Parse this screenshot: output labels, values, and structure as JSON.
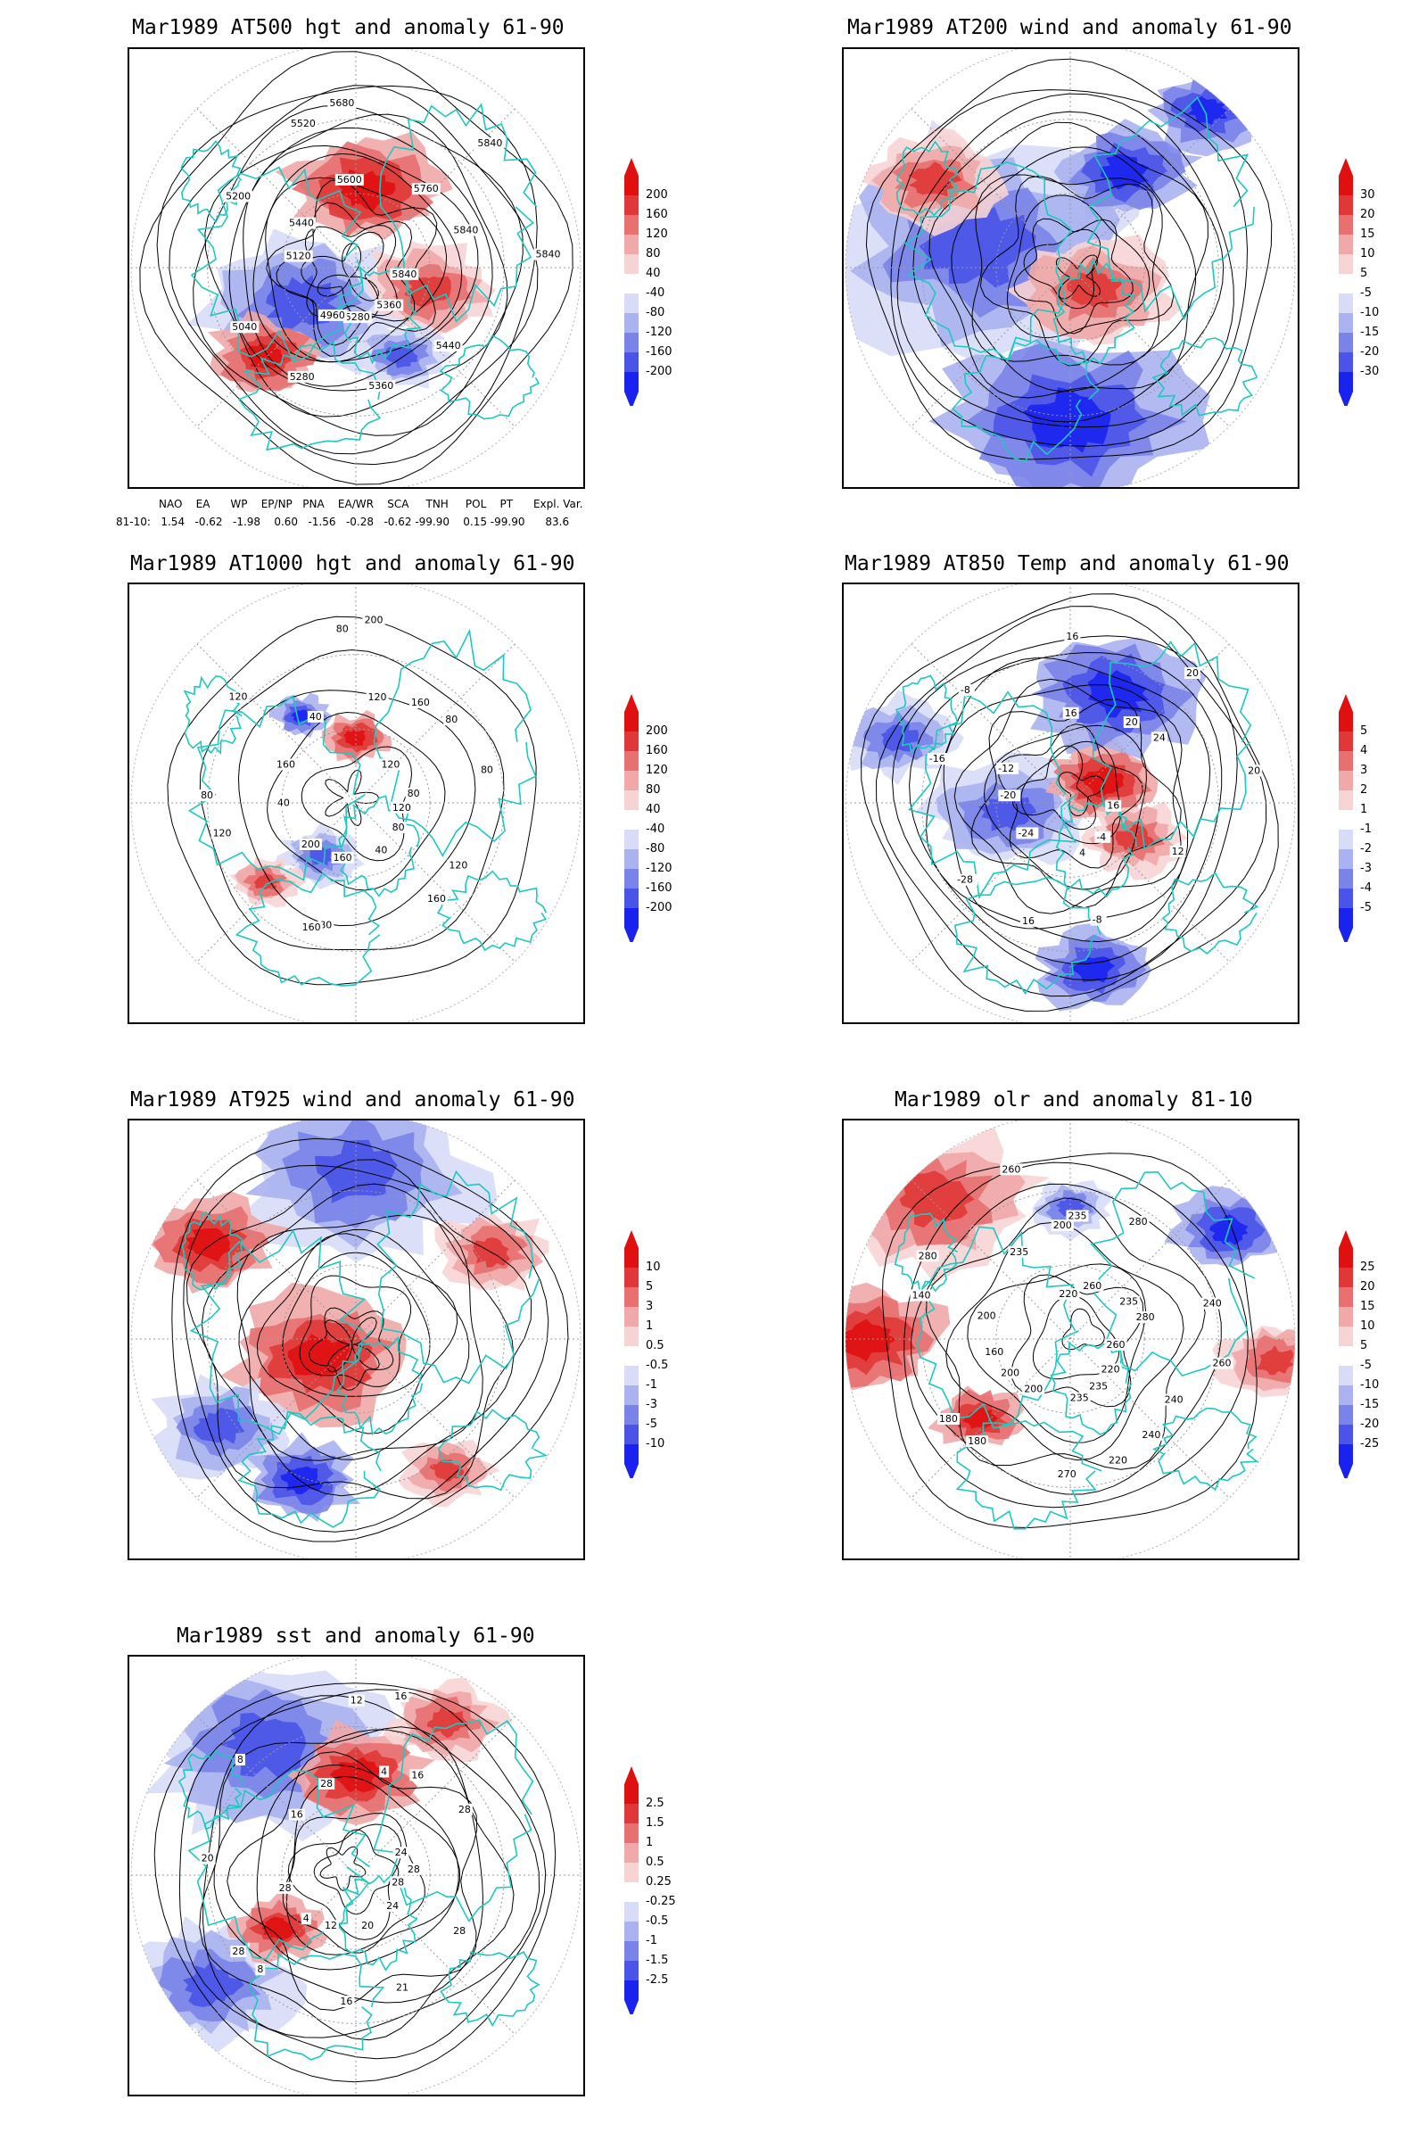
{
  "panels": [
    {
      "id": "p1",
      "title": "Mar1989 AT500 hgt and anomaly 61-90",
      "colorbar": [
        "200",
        "160",
        "120",
        "80",
        "40",
        "-40",
        "-80",
        "-120",
        "-160",
        "-200"
      ],
      "contour_labels": [
        "5840",
        "5440",
        "5360",
        "5360",
        "5280",
        "5280",
        "4960",
        "5040",
        "5120",
        "5200",
        "5440",
        "5520",
        "5600",
        "5680",
        "5760",
        "5840",
        "5840",
        "5840"
      ],
      "anomaly_pattern": [
        [
          "neg",
          0.38,
          0.58,
          0.18
        ],
        [
          "pos",
          0.52,
          0.32,
          0.14
        ],
        [
          "pos",
          0.66,
          0.55,
          0.12
        ],
        [
          "pos",
          0.3,
          0.7,
          0.1
        ],
        [
          "neg",
          0.6,
          0.7,
          0.08
        ]
      ],
      "contour_count": 14
    },
    {
      "id": "p2",
      "title": "Mar1989 AT200 wind and anomaly 61-90",
      "colorbar": [
        "30",
        "20",
        "15",
        "10",
        "5",
        "-5",
        "-10",
        "-15",
        "-20",
        "-30"
      ],
      "contour_labels": [],
      "anomaly_pattern": [
        [
          "neg",
          0.3,
          0.45,
          0.28
        ],
        [
          "neg",
          0.5,
          0.85,
          0.22
        ],
        [
          "pos",
          0.55,
          0.55,
          0.14
        ],
        [
          "neg",
          0.62,
          0.28,
          0.12
        ],
        [
          "pos",
          0.2,
          0.3,
          0.12
        ],
        [
          "neg",
          0.8,
          0.14,
          0.1
        ]
      ],
      "contour_count": 12
    },
    {
      "id": "p3",
      "title": "Mar1989 AT1000 hgt and anomaly 61-90",
      "colorbar": [
        "200",
        "160",
        "120",
        "80",
        "40",
        "-40",
        "-80",
        "-120",
        "-160",
        "-200"
      ],
      "contour_labels": [
        "120",
        "120",
        "80",
        "160",
        "40",
        "80",
        "160",
        "160",
        "200",
        "120",
        "40",
        "80",
        "160",
        "120",
        "40",
        "80",
        "120",
        "200",
        "160",
        "120",
        "80",
        "80",
        "80"
      ],
      "anomaly_pattern": [
        [
          "neg",
          0.42,
          0.62,
          0.07
        ],
        [
          "pos",
          0.5,
          0.35,
          0.06
        ],
        [
          "pos",
          0.3,
          0.68,
          0.06
        ],
        [
          "neg",
          0.38,
          0.3,
          0.05
        ]
      ],
      "contour_count": 6
    },
    {
      "id": "p4",
      "title": "Mar1989 AT850 Temp and anomaly 61-90",
      "colorbar": [
        "5",
        "4",
        "3",
        "2",
        "1",
        "-1",
        "-2",
        "-3",
        "-4",
        "-5"
      ],
      "contour_labels": [
        "16",
        "12",
        "-4",
        "-8",
        "4",
        "16",
        "-24",
        "-28",
        "-20",
        "-16",
        "-12",
        "-8",
        "16",
        "16",
        "20",
        "20",
        "24",
        "20"
      ],
      "anomaly_pattern": [
        [
          "neg",
          0.36,
          0.52,
          0.14
        ],
        [
          "pos",
          0.57,
          0.45,
          0.1
        ],
        [
          "pos",
          0.64,
          0.58,
          0.09
        ],
        [
          "neg",
          0.6,
          0.25,
          0.16
        ],
        [
          "neg",
          0.12,
          0.35,
          0.1
        ],
        [
          "neg",
          0.55,
          0.88,
          0.1
        ]
      ],
      "contour_count": 13
    },
    {
      "id": "p5",
      "title": "Mar1989 AT925 wind and anomaly 61-90",
      "colorbar": [
        "10",
        "5",
        "3",
        "1",
        "0.5",
        "-0.5",
        "-1",
        "-3",
        "-5",
        "-10"
      ],
      "contour_labels": [],
      "anomaly_pattern": [
        [
          "neg",
          0.5,
          0.12,
          0.22
        ],
        [
          "pos",
          0.42,
          0.54,
          0.16
        ],
        [
          "neg",
          0.2,
          0.7,
          0.12
        ],
        [
          "pos",
          0.18,
          0.28,
          0.12
        ],
        [
          "pos",
          0.8,
          0.3,
          0.1
        ],
        [
          "neg",
          0.38,
          0.82,
          0.1
        ],
        [
          "pos",
          0.7,
          0.8,
          0.08
        ]
      ],
      "contour_count": 11
    },
    {
      "id": "p6",
      "title": "Mar1989 olr and anomaly 81-10",
      "colorbar": [
        "25",
        "20",
        "15",
        "10",
        "5",
        "-5",
        "-10",
        "-15",
        "-20",
        "-25"
      ],
      "contour_labels": [
        "260",
        "240",
        "220",
        "240",
        "235",
        "220",
        "235",
        "270",
        "200",
        "180",
        "200",
        "180",
        "160",
        "140",
        "200",
        "280",
        "235",
        "260",
        "200",
        "220",
        "235",
        "260",
        "280",
        "235",
        "240",
        "280",
        "260"
      ],
      "anomaly_pattern": [
        [
          "pos",
          0.2,
          0.18,
          0.18
        ],
        [
          "pos",
          0.05,
          0.5,
          0.14
        ],
        [
          "pos",
          0.95,
          0.55,
          0.1
        ],
        [
          "neg",
          0.85,
          0.25,
          0.1
        ],
        [
          "neg",
          0.5,
          0.2,
          0.07
        ],
        [
          "pos",
          0.3,
          0.68,
          0.08
        ]
      ],
      "contour_count": 9
    },
    {
      "id": "p7",
      "title": "Mar1989 sst and anomaly 61-90",
      "colorbar": [
        "2.5",
        "1.5",
        "1",
        "0.5",
        "0.25",
        "-0.25",
        "-0.5",
        "-1",
        "-1.5",
        "-2.5"
      ],
      "contour_labels": [
        "28",
        "28",
        "24",
        "21",
        "20",
        "16",
        "12",
        "8",
        "4",
        "28",
        "28",
        "20",
        "16",
        "8",
        "28",
        "12",
        "4",
        "16",
        "16",
        "24",
        "28",
        "28"
      ],
      "anomaly_pattern": [
        [
          "neg",
          0.3,
          0.2,
          0.22
        ],
        [
          "pos",
          0.5,
          0.27,
          0.12
        ],
        [
          "neg",
          0.18,
          0.75,
          0.15
        ],
        [
          "pos",
          0.33,
          0.62,
          0.08
        ],
        [
          "pos",
          0.7,
          0.15,
          0.1
        ]
      ],
      "contour_count": 12
    }
  ],
  "teleconnection": {
    "header": "NAO    EA      WP    EP/NP   PNA    EA/WR    SCA     TNH     POL    PT      Expl. Var.",
    "row": "81-10:   1.54   -0.62   -1.98    0.60   -1.56   -0.28   -0.62 -99.90    0.15 -99.90      83.6"
  },
  "colors": {
    "coast": "#1ec8c0",
    "contour": "#000000",
    "grid": "#9a9a9a",
    "pos": [
      "#f7d4d4",
      "#f0a8a8",
      "#e87070",
      "#e03838",
      "#e01010"
    ],
    "neg": [
      "#d8dcf7",
      "#aab2f0",
      "#7a84e8",
      "#4a54e8",
      "#1a22f0"
    ]
  }
}
